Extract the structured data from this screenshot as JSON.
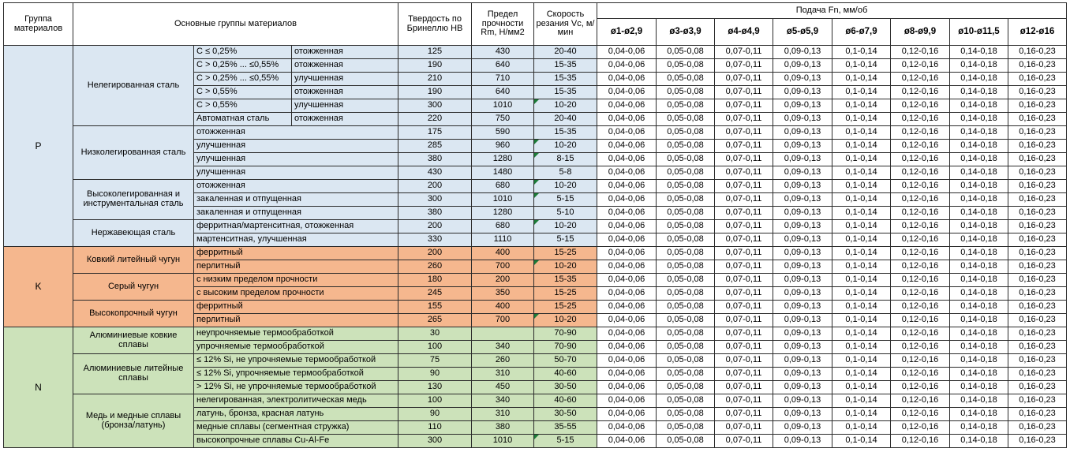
{
  "header": {
    "col_group": "Группа материалов",
    "col_main": "Основные группы материалов",
    "col_hb": "Твердость по Бринеллю HB",
    "col_rm": "Предел прочности Rm, Н/мм2",
    "col_vc": "Скорость резания Vc, м/мин",
    "col_feed": "Подача Fn, мм/об",
    "feed_cols": [
      "ø1-ø2,9",
      "ø3-ø3,9",
      "ø4-ø4,9",
      "ø5-ø5,9",
      "ø6-ø7,9",
      "ø8-ø9,9",
      "ø10-ø11,5",
      "ø12-ø16"
    ]
  },
  "colors": {
    "p": "#DBE7F2",
    "k": "#F5B78E",
    "n": "#CCE2BA",
    "flag_triangle": "#1c7c38"
  },
  "feed_values": [
    "0,04-0,06",
    "0,05-0,08",
    "0,07-0,11",
    "0,09-0,13",
    "0,1-0,14",
    "0,12-0,16",
    "0,14-0,18",
    "0,16-0,23"
  ],
  "sections": [
    {
      "code": "P",
      "color_key": "p",
      "groups": [
        {
          "name": "Нелегированная сталь",
          "rows": [
            {
              "cond": "C ≤ 0,25%",
              "state": "отожженная",
              "hb": "125",
              "rm": "430",
              "vc": "20-40",
              "flag": false
            },
            {
              "cond": "C > 0,25% ... ≤0,55%",
              "state": "отожженная",
              "hb": "190",
              "rm": "640",
              "vc": "15-35",
              "flag": false
            },
            {
              "cond": "C > 0,25% ... ≤0,55%",
              "state": "улучшенная",
              "hb": "210",
              "rm": "710",
              "vc": "15-35",
              "flag": false
            },
            {
              "cond": "C > 0,55%",
              "state": "отожженная",
              "hb": "190",
              "rm": "640",
              "vc": "15-35",
              "flag": false
            },
            {
              "cond": "C > 0,55%",
              "state": "улучшенная",
              "hb": "300",
              "rm": "1010",
              "vc": "10-20",
              "flag": true
            },
            {
              "cond": "Автоматная сталь",
              "state": "отожженная",
              "hb": "220",
              "rm": "750",
              "vc": "20-40",
              "flag": false
            }
          ]
        },
        {
          "name": "Низколегированная сталь",
          "rows": [
            {
              "desc": "отожженная",
              "hb": "175",
              "rm": "590",
              "vc": "15-35",
              "flag": false
            },
            {
              "desc": "улучшенная",
              "hb": "285",
              "rm": "960",
              "vc": "10-20",
              "flag": true
            },
            {
              "desc": "улучшенная",
              "hb": "380",
              "rm": "1280",
              "vc": "8-15",
              "flag": true
            },
            {
              "desc": "улучшенная",
              "hb": "430",
              "rm": "1480",
              "vc": "5-8",
              "flag": false
            }
          ]
        },
        {
          "name": "Высоколегированная и инструментальная сталь",
          "rows": [
            {
              "desc": "отожженная",
              "hb": "200",
              "rm": "680",
              "vc": "10-20",
              "flag": true
            },
            {
              "desc": "закаленная и отпущенная",
              "hb": "300",
              "rm": "1010",
              "vc": "5-15",
              "flag": true
            },
            {
              "desc": "закаленная и отпущенная",
              "hb": "380",
              "rm": "1280",
              "vc": "5-10",
              "flag": false
            }
          ]
        },
        {
          "name": "Нержавеющая сталь",
          "rows": [
            {
              "desc": "ферритная/мартенситная, отожженная",
              "hb": "200",
              "rm": "680",
              "vc": "10-20",
              "flag": true
            },
            {
              "desc": "мартенситная, улучшенная",
              "hb": "330",
              "rm": "1110",
              "vc": "5-15",
              "flag": false
            }
          ]
        }
      ]
    },
    {
      "code": "K",
      "color_key": "k",
      "groups": [
        {
          "name": "Ковкий литейный чугун",
          "rows": [
            {
              "desc": "ферритный",
              "hb": "200",
              "rm": "400",
              "vc": "15-25",
              "flag": false
            },
            {
              "desc": "перлитный",
              "hb": "260",
              "rm": "700",
              "vc": "10-20",
              "flag": true
            }
          ]
        },
        {
          "name": "Серый чугун",
          "rows": [
            {
              "desc": "с низким пределом прочности",
              "hb": "180",
              "rm": "200",
              "vc": "15-35",
              "flag": false
            },
            {
              "desc": "с высоким пределом прочности",
              "hb": "245",
              "rm": "350",
              "vc": "15-25",
              "flag": false
            }
          ]
        },
        {
          "name": "Высокопрочный чугун",
          "rows": [
            {
              "desc": "ферритный",
              "hb": "155",
              "rm": "400",
              "vc": "15-25",
              "flag": false
            },
            {
              "desc": "перлитный",
              "hb": "265",
              "rm": "700",
              "vc": "10-20",
              "flag": true
            }
          ]
        }
      ]
    },
    {
      "code": "N",
      "color_key": "n",
      "groups": [
        {
          "name": "Алюминиевые ковкие сплавы",
          "rows": [
            {
              "desc": "неупрочняемые термообработкой",
              "hb": "30",
              "rm": "",
              "vc": "70-90",
              "flag": false
            },
            {
              "desc": "упрочняемые термообработкой",
              "hb": "100",
              "rm": "340",
              "vc": "70-90",
              "flag": false
            }
          ]
        },
        {
          "name": "Алюминиевые литейные сплавы",
          "rows": [
            {
              "desc": "≤ 12% Si, не упрочняемые термообработкой",
              "hb": "75",
              "rm": "260",
              "vc": "50-70",
              "flag": false
            },
            {
              "desc": "≤ 12% Si, упрочняемые термообработкой",
              "hb": "90",
              "rm": "310",
              "vc": "40-60",
              "flag": false
            },
            {
              "desc": "> 12% Si, не упрочняемые термообработкой",
              "hb": "130",
              "rm": "450",
              "vc": "30-50",
              "flag": false
            }
          ]
        },
        {
          "name": "Медь и медные сплавы (бронза/латунь)",
          "rows": [
            {
              "desc": "нелегированная, электролитическая медь",
              "hb": "100",
              "rm": "340",
              "vc": "40-60",
              "flag": false
            },
            {
              "desc": "латунь, бронза, красная латунь",
              "hb": "90",
              "rm": "310",
              "vc": "30-50",
              "flag": false
            },
            {
              "desc": "медные сплавы (сегментная стружка)",
              "hb": "110",
              "rm": "380",
              "vc": "35-55",
              "flag": false
            },
            {
              "desc": "высокопрочные сплавы Cu-Al-Fe",
              "hb": "300",
              "rm": "1010",
              "vc": "5-15",
              "flag": true
            }
          ]
        }
      ]
    }
  ]
}
